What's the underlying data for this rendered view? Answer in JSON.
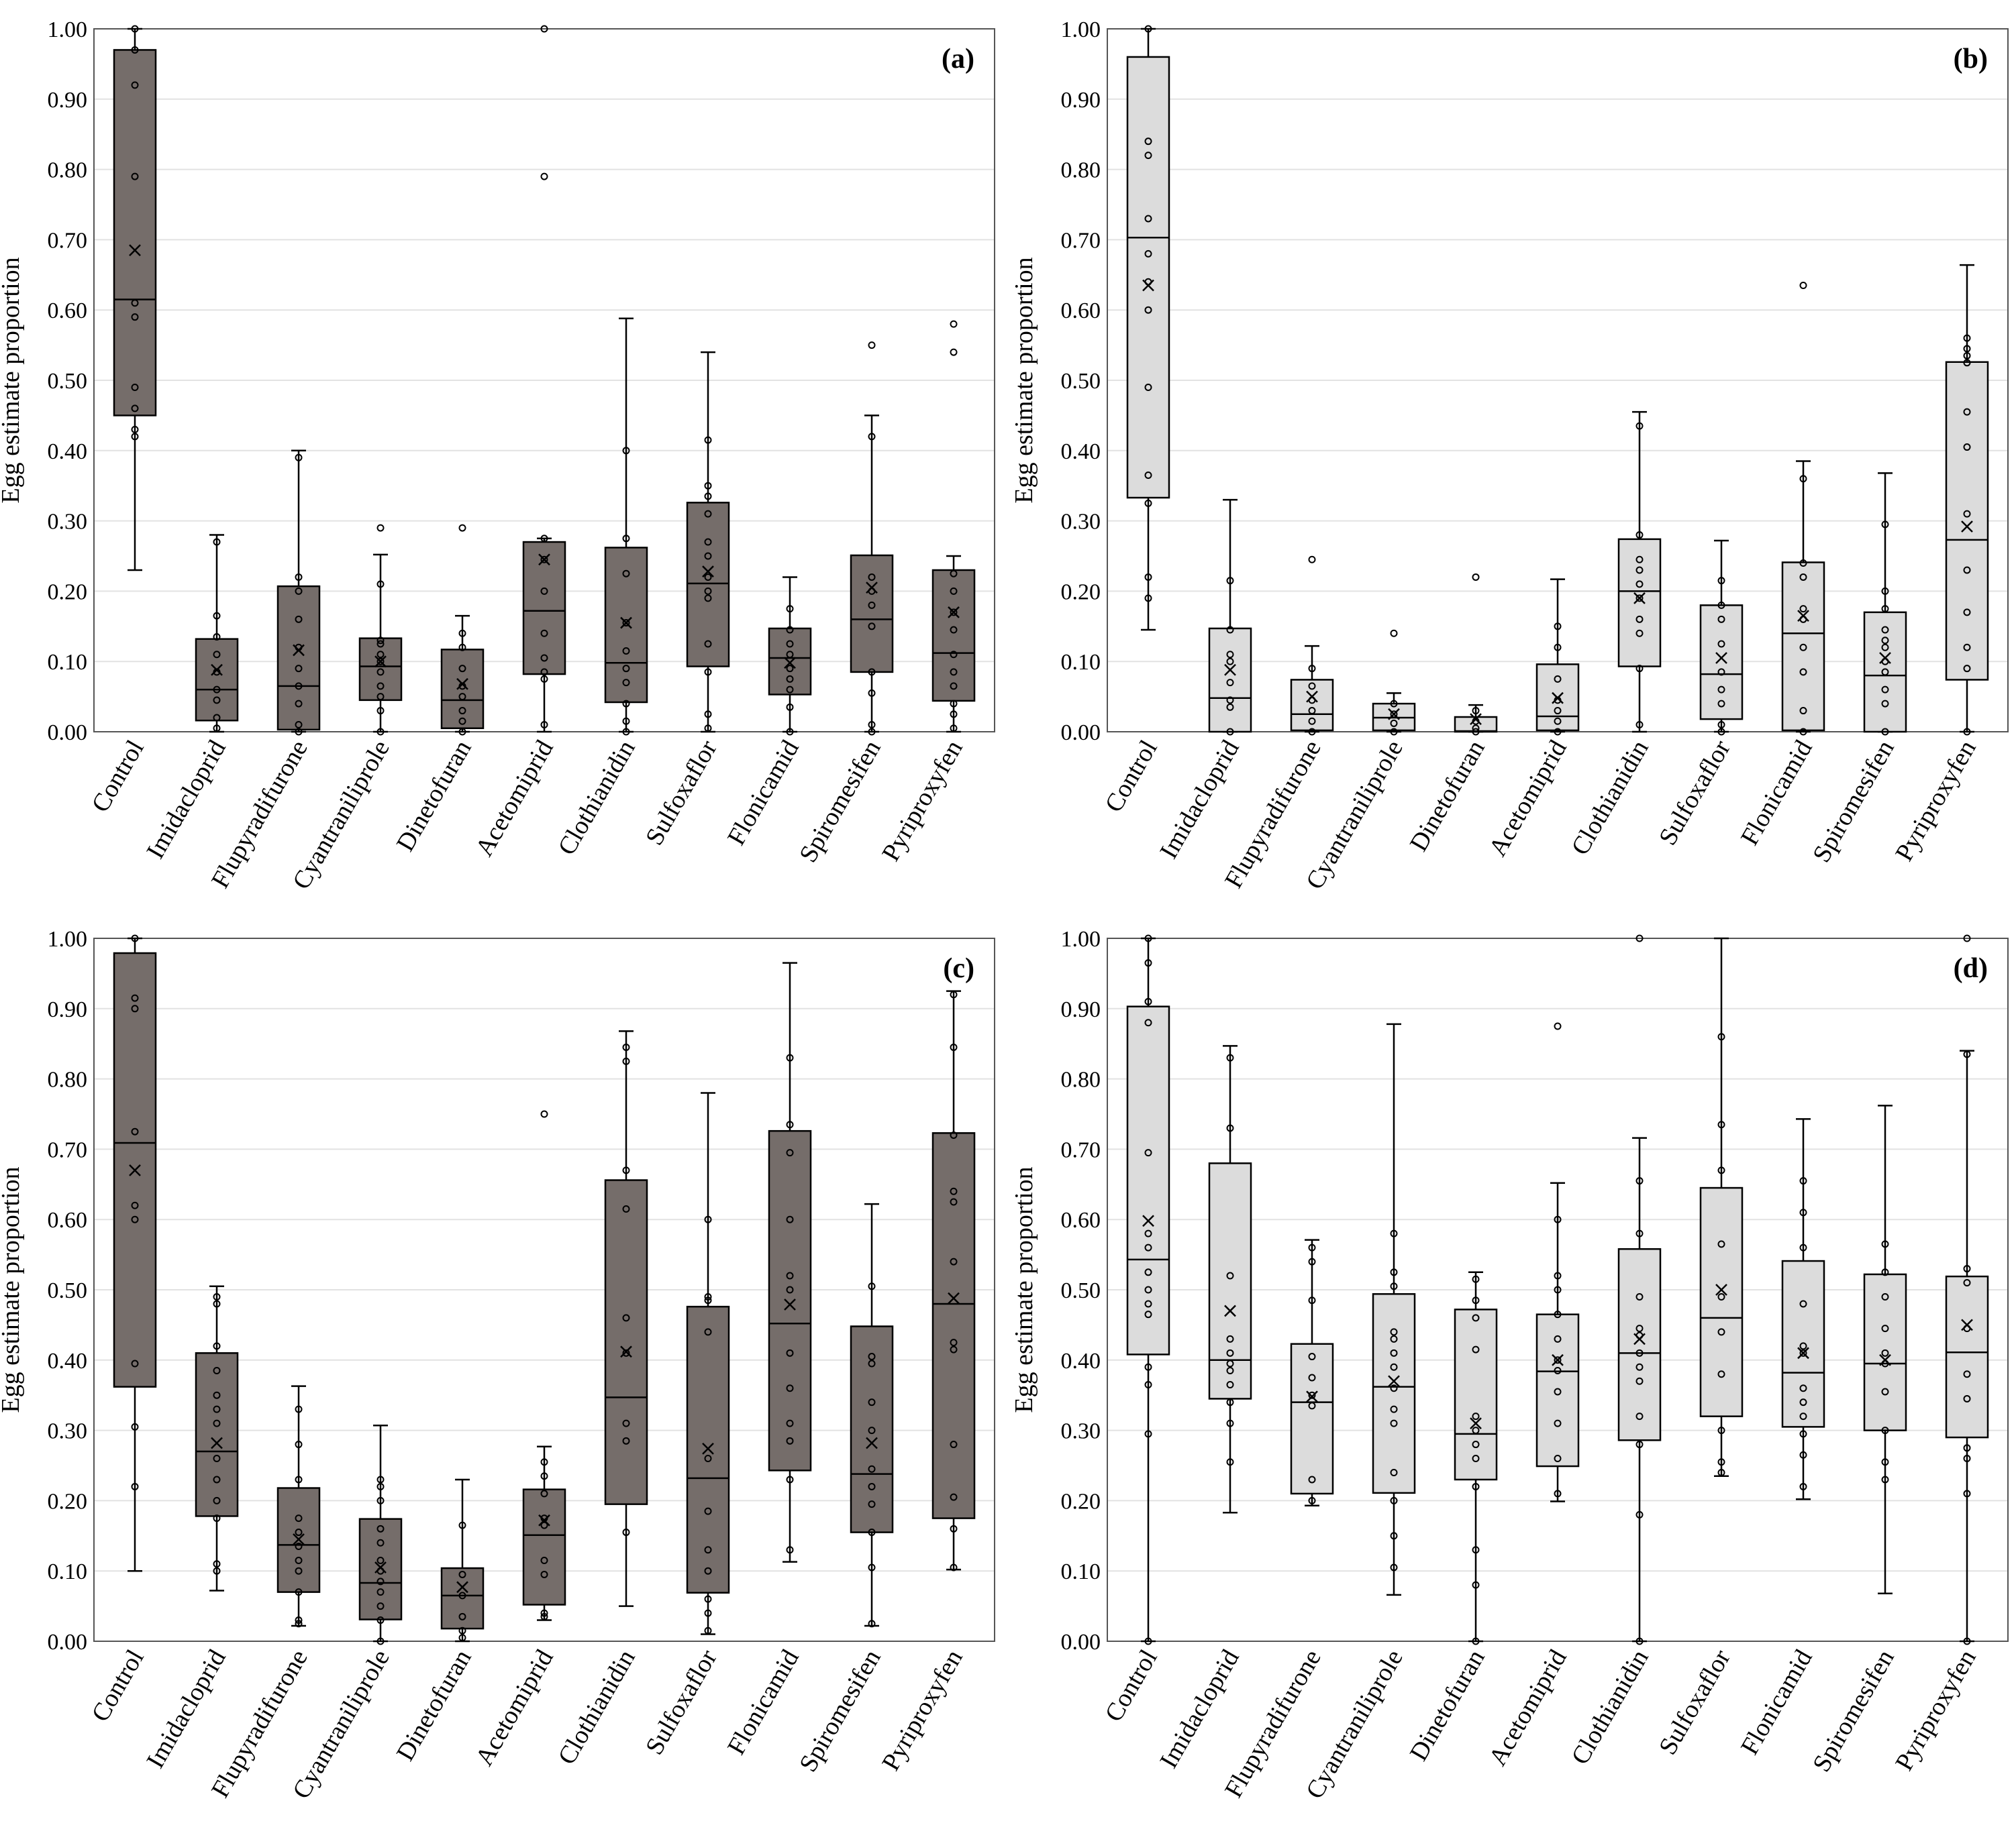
{
  "figure": {
    "ylabel": "Egg estimate proportion",
    "categories": [
      "Control",
      "Imidacloprid",
      "Flupyradifurone",
      "Cyantraniliprole",
      "Dinetofuran",
      "Acetomiprid",
      "Clothianidin",
      "Sulfoxaflor",
      "Flonicamid",
      "Spiromesifen",
      "Pyriproxyfen"
    ],
    "yticks": [
      "0.00",
      "0.10",
      "0.20",
      "0.30",
      "0.40",
      "0.50",
      "0.60",
      "0.70",
      "0.80",
      "0.90",
      "1.00"
    ],
    "colors": {
      "dark_box": "#756d6a",
      "light_box": "#dcdcdc",
      "grid": "#e2e2e2",
      "ink": "#000000"
    }
  },
  "chart_data": [
    {
      "panel": "(a)",
      "type": "box",
      "fill": "dark",
      "ylabel": "Egg estimate proportion",
      "ylim": [
        0,
        1
      ],
      "boxes": [
        {
          "min": 0.23,
          "q1": 0.45,
          "median": 0.615,
          "q3": 0.97,
          "max": 1.0,
          "mean": 0.685,
          "points": [
            0.42,
            0.43,
            0.46,
            0.49,
            0.59,
            0.61,
            0.79,
            0.92,
            0.97,
            1.0
          ]
        },
        {
          "min": 0.0,
          "q1": 0.016,
          "median": 0.06,
          "q3": 0.132,
          "max": 0.28,
          "mean": 0.088,
          "points": [
            0.005,
            0.02,
            0.045,
            0.06,
            0.085,
            0.11,
            0.135,
            0.165,
            0.27
          ]
        },
        {
          "min": 0.0,
          "q1": 0.003,
          "median": 0.065,
          "q3": 0.207,
          "max": 0.4,
          "mean": 0.116,
          "points": [
            0.0,
            0.01,
            0.04,
            0.065,
            0.09,
            0.12,
            0.16,
            0.2,
            0.22,
            0.39
          ]
        },
        {
          "min": 0.0,
          "q1": 0.045,
          "median": 0.093,
          "q3": 0.133,
          "max": 0.252,
          "mean": 0.1,
          "points": [
            0.0,
            0.03,
            0.05,
            0.065,
            0.085,
            0.1,
            0.11,
            0.125,
            0.13,
            0.21,
            0.29
          ]
        },
        {
          "min": 0.0,
          "q1": 0.005,
          "median": 0.045,
          "q3": 0.117,
          "max": 0.165,
          "mean": 0.068,
          "points": [
            0.0,
            0.015,
            0.03,
            0.05,
            0.065,
            0.09,
            0.12,
            0.14,
            0.29
          ]
        },
        {
          "min": 0.0,
          "q1": 0.082,
          "median": 0.172,
          "q3": 0.27,
          "max": 0.275,
          "mean": 0.245,
          "points": [
            0.01,
            0.075,
            0.085,
            0.105,
            0.14,
            0.2,
            0.245,
            0.275,
            0.79,
            1.0
          ]
        },
        {
          "min": 0.0,
          "q1": 0.042,
          "median": 0.098,
          "q3": 0.262,
          "max": 0.588,
          "mean": 0.155,
          "points": [
            0.0,
            0.015,
            0.04,
            0.07,
            0.09,
            0.115,
            0.155,
            0.225,
            0.275,
            0.4
          ]
        },
        {
          "min": 0.0,
          "q1": 0.093,
          "median": 0.211,
          "q3": 0.326,
          "max": 0.54,
          "mean": 0.228,
          "points": [
            0.005,
            0.025,
            0.085,
            0.125,
            0.19,
            0.2,
            0.22,
            0.25,
            0.27,
            0.31,
            0.335,
            0.35,
            0.415
          ]
        },
        {
          "min": 0.0,
          "q1": 0.053,
          "median": 0.105,
          "q3": 0.147,
          "max": 0.22,
          "mean": 0.098,
          "points": [
            0.0,
            0.035,
            0.06,
            0.075,
            0.09,
            0.11,
            0.125,
            0.145,
            0.175
          ]
        },
        {
          "min": 0.0,
          "q1": 0.085,
          "median": 0.16,
          "q3": 0.251,
          "max": 0.45,
          "mean": 0.205,
          "points": [
            0.0,
            0.01,
            0.055,
            0.085,
            0.15,
            0.18,
            0.2,
            0.22,
            0.42,
            0.55
          ]
        },
        {
          "min": 0.0,
          "q1": 0.044,
          "median": 0.112,
          "q3": 0.23,
          "max": 0.25,
          "mean": 0.17,
          "points": [
            0.005,
            0.025,
            0.04,
            0.065,
            0.085,
            0.11,
            0.145,
            0.17,
            0.2,
            0.225,
            0.54,
            0.58
          ]
        }
      ]
    },
    {
      "panel": "(b)",
      "type": "box",
      "fill": "light",
      "ylabel": "Egg estimate proportion",
      "ylim": [
        0,
        1
      ],
      "boxes": [
        {
          "min": 0.145,
          "q1": 0.333,
          "median": 0.703,
          "q3": 0.96,
          "max": 1.0,
          "mean": 0.635,
          "points": [
            0.19,
            0.22,
            0.325,
            0.365,
            0.49,
            0.6,
            0.64,
            0.68,
            0.73,
            0.82,
            0.84,
            1.0
          ]
        },
        {
          "min": 0.0,
          "q1": 0.0,
          "median": 0.048,
          "q3": 0.147,
          "max": 0.33,
          "mean": 0.088,
          "points": [
            0.0,
            0.035,
            0.045,
            0.07,
            0.1,
            0.11,
            0.145,
            0.215
          ]
        },
        {
          "min": 0.0,
          "q1": 0.002,
          "median": 0.025,
          "q3": 0.074,
          "max": 0.122,
          "mean": 0.05,
          "points": [
            0.0,
            0.015,
            0.03,
            0.045,
            0.065,
            0.09,
            0.245
          ]
        },
        {
          "min": 0.0,
          "q1": 0.002,
          "median": 0.02,
          "q3": 0.04,
          "max": 0.055,
          "mean": 0.025,
          "points": [
            0.0,
            0.012,
            0.025,
            0.04,
            0.14
          ]
        },
        {
          "min": 0.0,
          "q1": 0.0,
          "median": 0.001,
          "q3": 0.021,
          "max": 0.038,
          "mean": 0.018,
          "points": [
            0.0,
            0.005,
            0.015,
            0.03,
            0.22
          ]
        },
        {
          "min": 0.0,
          "q1": 0.002,
          "median": 0.022,
          "q3": 0.096,
          "max": 0.217,
          "mean": 0.048,
          "points": [
            0.0,
            0.015,
            0.03,
            0.045,
            0.075,
            0.12,
            0.15
          ]
        },
        {
          "min": 0.0,
          "q1": 0.093,
          "median": 0.2,
          "q3": 0.274,
          "max": 0.455,
          "mean": 0.19,
          "points": [
            0.01,
            0.09,
            0.14,
            0.16,
            0.19,
            0.21,
            0.23,
            0.245,
            0.28,
            0.435
          ]
        },
        {
          "min": 0.0,
          "q1": 0.018,
          "median": 0.082,
          "q3": 0.18,
          "max": 0.272,
          "mean": 0.105,
          "points": [
            0.0,
            0.01,
            0.04,
            0.06,
            0.085,
            0.125,
            0.16,
            0.18,
            0.215
          ]
        },
        {
          "min": 0.0,
          "q1": 0.002,
          "median": 0.14,
          "q3": 0.241,
          "max": 0.385,
          "mean": 0.165,
          "points": [
            0.0,
            0.03,
            0.085,
            0.12,
            0.16,
            0.175,
            0.22,
            0.24,
            0.36,
            0.635
          ]
        },
        {
          "min": 0.0,
          "q1": 0.0,
          "median": 0.08,
          "q3": 0.17,
          "max": 0.368,
          "mean": 0.105,
          "points": [
            0.0,
            0.04,
            0.06,
            0.085,
            0.1,
            0.12,
            0.13,
            0.145,
            0.175,
            0.2,
            0.295
          ]
        },
        {
          "min": 0.0,
          "q1": 0.074,
          "median": 0.273,
          "q3": 0.526,
          "max": 0.664,
          "mean": 0.292,
          "points": [
            0.0,
            0.09,
            0.12,
            0.17,
            0.23,
            0.31,
            0.405,
            0.455,
            0.525,
            0.535,
            0.545,
            0.56
          ]
        }
      ]
    },
    {
      "panel": "(c)",
      "type": "box",
      "fill": "dark",
      "ylabel": "Egg estimate proportion",
      "ylim": [
        0,
        1
      ],
      "boxes": [
        {
          "min": 0.1,
          "q1": 0.362,
          "median": 0.709,
          "q3": 0.979,
          "max": 1.0,
          "mean": 0.67,
          "points": [
            0.22,
            0.305,
            0.395,
            0.6,
            0.62,
            0.725,
            0.915,
            0.9,
            1.0
          ]
        },
        {
          "min": 0.072,
          "q1": 0.178,
          "median": 0.27,
          "q3": 0.41,
          "max": 0.505,
          "mean": 0.282,
          "points": [
            0.1,
            0.11,
            0.175,
            0.2,
            0.23,
            0.26,
            0.31,
            0.33,
            0.35,
            0.385,
            0.42,
            0.48,
            0.49
          ]
        },
        {
          "min": 0.022,
          "q1": 0.07,
          "median": 0.137,
          "q3": 0.218,
          "max": 0.363,
          "mean": 0.145,
          "points": [
            0.025,
            0.03,
            0.07,
            0.1,
            0.115,
            0.135,
            0.155,
            0.175,
            0.23,
            0.28,
            0.33
          ]
        },
        {
          "min": 0.0,
          "q1": 0.031,
          "median": 0.083,
          "q3": 0.174,
          "max": 0.307,
          "mean": 0.105,
          "points": [
            0.0,
            0.03,
            0.05,
            0.07,
            0.085,
            0.1,
            0.115,
            0.14,
            0.16,
            0.2,
            0.22,
            0.23
          ]
        },
        {
          "min": 0.0,
          "q1": 0.018,
          "median": 0.065,
          "q3": 0.104,
          "max": 0.23,
          "mean": 0.077,
          "points": [
            0.005,
            0.015,
            0.035,
            0.065,
            0.095,
            0.165
          ]
        },
        {
          "min": 0.03,
          "q1": 0.052,
          "median": 0.151,
          "q3": 0.216,
          "max": 0.277,
          "mean": 0.172,
          "points": [
            0.035,
            0.04,
            0.095,
            0.115,
            0.165,
            0.175,
            0.21,
            0.235,
            0.255,
            0.75
          ]
        },
        {
          "min": 0.05,
          "q1": 0.195,
          "median": 0.347,
          "q3": 0.656,
          "max": 0.868,
          "mean": 0.412,
          "points": [
            0.155,
            0.285,
            0.31,
            0.41,
            0.46,
            0.615,
            0.67,
            0.825,
            0.845
          ]
        },
        {
          "min": 0.01,
          "q1": 0.069,
          "median": 0.232,
          "q3": 0.476,
          "max": 0.78,
          "mean": 0.274,
          "points": [
            0.015,
            0.04,
            0.06,
            0.1,
            0.13,
            0.185,
            0.26,
            0.44,
            0.485,
            0.49,
            0.6
          ]
        },
        {
          "min": 0.113,
          "q1": 0.243,
          "median": 0.452,
          "q3": 0.726,
          "max": 0.965,
          "mean": 0.479,
          "points": [
            0.13,
            0.23,
            0.285,
            0.31,
            0.36,
            0.41,
            0.5,
            0.52,
            0.6,
            0.695,
            0.735,
            0.83
          ]
        },
        {
          "min": 0.022,
          "q1": 0.155,
          "median": 0.238,
          "q3": 0.448,
          "max": 0.622,
          "mean": 0.282,
          "points": [
            0.025,
            0.105,
            0.155,
            0.195,
            0.22,
            0.245,
            0.3,
            0.34,
            0.395,
            0.405,
            0.505
          ]
        },
        {
          "min": 0.102,
          "q1": 0.175,
          "median": 0.48,
          "q3": 0.723,
          "max": 0.925,
          "mean": 0.488,
          "points": [
            0.105,
            0.16,
            0.205,
            0.28,
            0.415,
            0.425,
            0.54,
            0.625,
            0.64,
            0.72,
            0.845,
            0.92
          ]
        }
      ]
    },
    {
      "panel": "(d)",
      "type": "box",
      "fill": "light",
      "ylabel": "Egg estimate proportion",
      "ylim": [
        0,
        1
      ],
      "boxes": [
        {
          "min": 0.0,
          "q1": 0.408,
          "median": 0.543,
          "q3": 0.903,
          "max": 1.0,
          "mean": 0.598,
          "points": [
            0.0,
            0.295,
            0.365,
            0.39,
            0.465,
            0.48,
            0.5,
            0.525,
            0.56,
            0.58,
            0.695,
            0.88,
            0.91,
            0.965,
            1.0
          ]
        },
        {
          "min": 0.183,
          "q1": 0.345,
          "median": 0.4,
          "q3": 0.68,
          "max": 0.847,
          "mean": 0.47,
          "points": [
            0.255,
            0.31,
            0.34,
            0.365,
            0.385,
            0.395,
            0.41,
            0.43,
            0.52,
            0.73,
            0.83
          ]
        },
        {
          "min": 0.193,
          "q1": 0.21,
          "median": 0.34,
          "q3": 0.423,
          "max": 0.571,
          "mean": 0.348,
          "points": [
            0.2,
            0.23,
            0.335,
            0.35,
            0.375,
            0.405,
            0.485,
            0.54,
            0.56
          ]
        },
        {
          "min": 0.066,
          "q1": 0.211,
          "median": 0.362,
          "q3": 0.494,
          "max": 0.878,
          "mean": 0.37,
          "points": [
            0.105,
            0.15,
            0.2,
            0.24,
            0.31,
            0.33,
            0.36,
            0.39,
            0.41,
            0.43,
            0.44,
            0.505,
            0.525,
            0.58
          ]
        },
        {
          "min": 0.0,
          "q1": 0.23,
          "median": 0.295,
          "q3": 0.472,
          "max": 0.525,
          "mean": 0.31,
          "points": [
            0.0,
            0.08,
            0.13,
            0.22,
            0.26,
            0.28,
            0.3,
            0.32,
            0.415,
            0.46,
            0.485,
            0.515
          ]
        },
        {
          "min": 0.199,
          "q1": 0.249,
          "median": 0.384,
          "q3": 0.465,
          "max": 0.652,
          "mean": 0.4,
          "points": [
            0.21,
            0.26,
            0.31,
            0.355,
            0.385,
            0.4,
            0.43,
            0.465,
            0.5,
            0.52,
            0.6,
            0.875
          ]
        },
        {
          "min": 0.0,
          "q1": 0.286,
          "median": 0.41,
          "q3": 0.558,
          "max": 0.716,
          "mean": 0.43,
          "points": [
            0.0,
            0.18,
            0.28,
            0.32,
            0.37,
            0.39,
            0.41,
            0.435,
            0.445,
            0.49,
            0.58,
            0.655,
            1.0
          ]
        },
        {
          "min": 0.235,
          "q1": 0.32,
          "median": 0.46,
          "q3": 0.645,
          "max": 1.0,
          "mean": 0.5,
          "points": [
            0.24,
            0.255,
            0.3,
            0.38,
            0.44,
            0.49,
            0.565,
            0.67,
            0.735,
            0.86
          ]
        },
        {
          "min": 0.202,
          "q1": 0.305,
          "median": 0.382,
          "q3": 0.541,
          "max": 0.743,
          "mean": 0.41,
          "points": [
            0.22,
            0.265,
            0.295,
            0.32,
            0.34,
            0.36,
            0.41,
            0.42,
            0.48,
            0.56,
            0.61,
            0.655
          ]
        },
        {
          "min": 0.068,
          "q1": 0.3,
          "median": 0.395,
          "q3": 0.522,
          "max": 0.762,
          "mean": 0.4,
          "points": [
            0.23,
            0.255,
            0.3,
            0.355,
            0.395,
            0.41,
            0.445,
            0.49,
            0.525,
            0.565
          ]
        },
        {
          "min": 0.0,
          "q1": 0.29,
          "median": 0.411,
          "q3": 0.519,
          "max": 0.84,
          "mean": 0.45,
          "points": [
            0.0,
            0.21,
            0.26,
            0.275,
            0.345,
            0.38,
            0.445,
            0.51,
            0.53,
            0.835,
            1.0
          ]
        }
      ]
    }
  ]
}
